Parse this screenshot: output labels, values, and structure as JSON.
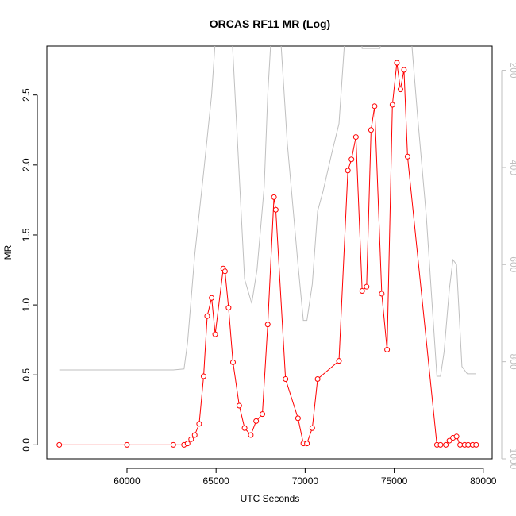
{
  "chart_data": {
    "type": "line",
    "title": "ORCAS RF11 MR (Log)",
    "xlabel": "UTC Seconds",
    "ylabel": "MR",
    "xlim": [
      55500,
      80500
    ],
    "ylim": [
      -0.1,
      2.85
    ],
    "y2lim": [
      1000,
      150
    ],
    "y2_reversed": true,
    "x_ticks": [
      60000,
      65000,
      70000,
      75000,
      80000
    ],
    "y_ticks": [
      0.0,
      0.5,
      1.0,
      1.5,
      2.0,
      2.5
    ],
    "y2_ticks": [
      200,
      400,
      600,
      800,
      1000
    ],
    "series": [
      {
        "axis": "left",
        "color": "#ff0000",
        "marker": "circle-open",
        "x": [
          56200,
          60000,
          62600,
          63200,
          63400,
          63600,
          63800,
          64050,
          64300,
          64500,
          64750,
          64950,
          65400,
          65500,
          65700,
          65950,
          66300,
          66600,
          66950,
          67250,
          67600,
          67900,
          68250,
          68350,
          68900,
          69600,
          69900,
          70100,
          70400,
          70700,
          71900,
          72400,
          72600,
          72850,
          73200,
          73450,
          73700,
          73900,
          74300,
          74600,
          74900,
          75150,
          75350,
          75550,
          75750,
          77400,
          77600,
          77900,
          78100,
          78300,
          78500,
          78700,
          78950,
          79150,
          79400,
          79600
        ],
        "y": [
          0.0,
          0.0,
          0.0,
          0.0,
          0.01,
          0.04,
          0.07,
          0.15,
          0.49,
          0.92,
          1.05,
          0.79,
          1.26,
          1.24,
          0.98,
          0.59,
          0.28,
          0.12,
          0.07,
          0.17,
          0.22,
          0.86,
          1.77,
          1.68,
          0.47,
          0.19,
          0.01,
          0.01,
          0.12,
          0.47,
          0.6,
          1.96,
          2.04,
          2.2,
          1.1,
          1.13,
          2.25,
          2.42,
          1.08,
          0.68,
          2.43,
          2.73,
          2.54,
          2.68,
          2.06,
          0.0,
          0.0,
          0.0,
          0.03,
          0.05,
          0.06,
          0.0,
          0.0,
          0.0,
          0.0,
          0.0
        ]
      },
      {
        "axis": "right",
        "color": "#bfbfbf",
        "marker": "none",
        "x": [
          56200,
          60000,
          62600,
          63200,
          63400,
          63800,
          64300,
          64750,
          65100,
          65400,
          65800,
          66600,
          67000,
          67300,
          67700,
          67900,
          68200,
          68500,
          69000,
          69600,
          69900,
          70100,
          70400,
          70700,
          71000,
          71500,
          71900,
          72200,
          72500,
          73000,
          73200,
          73400,
          74200,
          74500,
          75000,
          75500,
          75800,
          76300,
          76800,
          77200,
          77400,
          77600,
          77800,
          78100,
          78300,
          78500,
          78800,
          79100,
          79400,
          79600
        ],
        "y": [
          817,
          817,
          817,
          815,
          760,
          580,
          410,
          250,
          60,
          60,
          60,
          630,
          680,
          610,
          440,
          250,
          60,
          60,
          350,
          600,
          715,
          715,
          640,
          490,
          450,
          370,
          310,
          150,
          60,
          60,
          155,
          155,
          155,
          60,
          60,
          60,
          60,
          290,
          500,
          720,
          830,
          830,
          780,
          650,
          590,
          600,
          810,
          825,
          825,
          825
        ]
      }
    ]
  }
}
